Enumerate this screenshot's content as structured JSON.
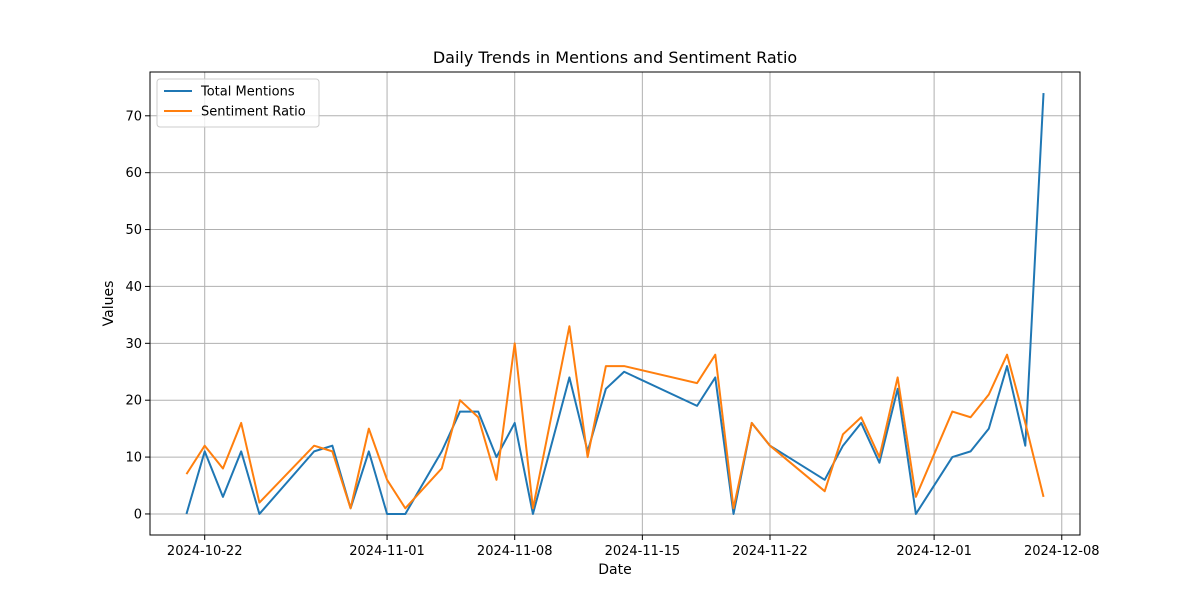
{
  "chart_data": {
    "type": "line",
    "title": "Daily Trends in Mentions and Sentiment Ratio",
    "xlabel": "Date",
    "ylabel": "Values",
    "x_ticks": [
      "2024-10-22",
      "2024-11-01",
      "2024-11-08",
      "2024-11-15",
      "2024-11-22",
      "2024-12-01",
      "2024-12-08"
    ],
    "y_ticks": [
      0,
      10,
      20,
      30,
      40,
      50,
      60,
      70
    ],
    "xlim": [
      "2024-10-19",
      "2024-12-09"
    ],
    "ylim": [
      -3.7,
      77.7
    ],
    "grid": true,
    "legend_position": "top-left",
    "x": [
      "2024-10-21",
      "2024-10-22",
      "2024-10-23",
      "2024-10-24",
      "2024-10-25",
      "2024-10-28",
      "2024-10-29",
      "2024-10-30",
      "2024-10-31",
      "2024-11-01",
      "2024-11-02",
      "2024-11-04",
      "2024-11-05",
      "2024-11-06",
      "2024-11-07",
      "2024-11-08",
      "2024-11-09",
      "2024-11-11",
      "2024-11-12",
      "2024-11-13",
      "2024-11-14",
      "2024-11-18",
      "2024-11-19",
      "2024-11-20",
      "2024-11-21",
      "2024-11-22",
      "2024-11-25",
      "2024-11-26",
      "2024-11-27",
      "2024-11-28",
      "2024-11-29",
      "2024-11-30",
      "2024-12-02",
      "2024-12-03",
      "2024-12-04",
      "2024-12-05",
      "2024-12-06",
      "2024-12-07"
    ],
    "series": [
      {
        "name": "Total Mentions",
        "color": "#1f77b4",
        "values": [
          0,
          11,
          3,
          11,
          0,
          11,
          12,
          1,
          11,
          0,
          0,
          11,
          18,
          18,
          10,
          16,
          0,
          24,
          11,
          22,
          25,
          19,
          24,
          0,
          16,
          12,
          6,
          12,
          16,
          9,
          22,
          0,
          10,
          11,
          15,
          26,
          12,
          74
        ]
      },
      {
        "name": "Sentiment Ratio",
        "color": "#ff7f0e",
        "values": [
          7,
          12,
          8,
          16,
          2,
          12,
          11,
          1,
          15,
          6,
          1,
          8,
          20,
          17,
          6,
          30,
          1,
          33,
          10,
          26,
          26,
          23,
          28,
          1,
          16,
          12,
          4,
          14,
          17,
          10,
          24,
          3,
          18,
          17,
          21,
          28,
          16,
          3
        ]
      }
    ]
  }
}
